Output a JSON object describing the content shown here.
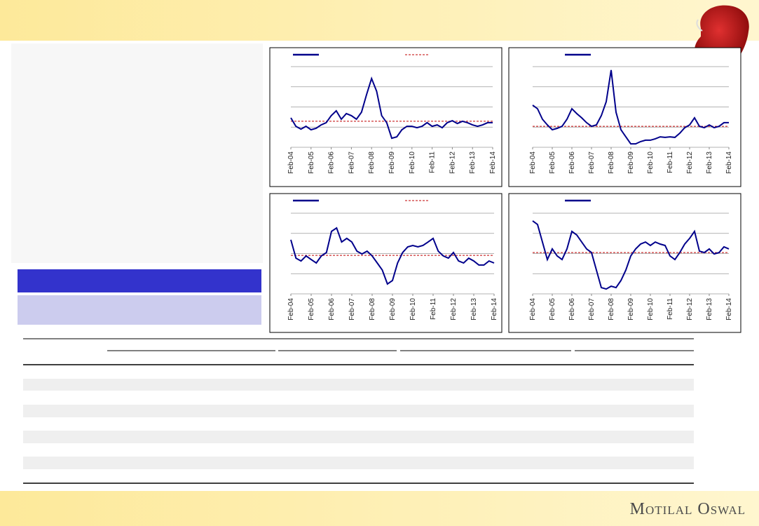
{
  "footer": {
    "logo": "Motilal Oswal"
  },
  "chart_data": [
    {
      "type": "line",
      "x": [
        0,
        3,
        6,
        9,
        12,
        15,
        18,
        21,
        24,
        27,
        30,
        33,
        36,
        39,
        42,
        45,
        48,
        51,
        54,
        57,
        60,
        63,
        66,
        69,
        72,
        75,
        78,
        81,
        84,
        87,
        90,
        93,
        96,
        99,
        102,
        105,
        108,
        111,
        114,
        117,
        120
      ],
      "xlim": [
        0,
        120
      ],
      "xticks": [
        {
          "value": 0,
          "label": "Feb-04"
        },
        {
          "value": 12,
          "label": "Feb-05"
        },
        {
          "value": 24,
          "label": "Feb-06"
        },
        {
          "value": 36,
          "label": "Feb-07"
        },
        {
          "value": 48,
          "label": "Feb-08"
        },
        {
          "value": 60,
          "label": "Feb-09"
        },
        {
          "value": 72,
          "label": "Feb-10"
        },
        {
          "value": 84,
          "label": "Feb-11"
        },
        {
          "value": 96,
          "label": "Feb-12"
        },
        {
          "value": 108,
          "label": "Feb-13"
        },
        {
          "value": 120,
          "label": "Feb-14"
        }
      ],
      "ylim": [
        0,
        4
      ],
      "yticks": [
        0,
        1,
        2,
        3,
        4
      ],
      "grid": true,
      "series": [
        {
          "color": "#00008b",
          "values": [
            1.46,
            1.04,
            0.9,
            1.04,
            0.87,
            0.94,
            1.11,
            1.22,
            1.57,
            1.81,
            1.39,
            1.67,
            1.57,
            1.39,
            1.74,
            2.61,
            3.41,
            2.78,
            1.57,
            1.22,
            0.45,
            0.52,
            0.87,
            1.04,
            1.04,
            0.97,
            1.04,
            1.22,
            1.04,
            1.11,
            0.97,
            1.22,
            1.32,
            1.18,
            1.29,
            1.22,
            1.11,
            1.04,
            1.11,
            1.22,
            1.22
          ]
        }
      ],
      "hline": {
        "value": 1.29,
        "color": "#c00000"
      },
      "legend_hline": true
    },
    {
      "type": "line",
      "x": [
        0,
        3,
        6,
        9,
        12,
        15,
        18,
        21,
        24,
        27,
        30,
        33,
        36,
        39,
        42,
        45,
        48,
        51,
        54,
        57,
        60,
        63,
        66,
        69,
        72,
        75,
        78,
        81,
        84,
        87,
        90,
        93,
        96,
        99,
        102,
        105,
        108,
        111,
        114,
        117,
        120
      ],
      "xlim": [
        0,
        120
      ],
      "xticks": [
        {
          "value": 0,
          "label": "Feb-04"
        },
        {
          "value": 12,
          "label": "Feb-05"
        },
        {
          "value": 24,
          "label": "Feb-06"
        },
        {
          "value": 36,
          "label": "Feb-07"
        },
        {
          "value": 48,
          "label": "Feb-08"
        },
        {
          "value": 60,
          "label": "Feb-09"
        },
        {
          "value": 72,
          "label": "Feb-10"
        },
        {
          "value": 84,
          "label": "Feb-11"
        },
        {
          "value": 96,
          "label": "Feb-12"
        },
        {
          "value": 108,
          "label": "Feb-13"
        },
        {
          "value": 120,
          "label": "Feb-14"
        }
      ],
      "ylim": [
        0,
        4
      ],
      "yticks": [
        0,
        1,
        2,
        3,
        4
      ],
      "grid": true,
      "series": [
        {
          "color": "#00008b",
          "values": [
            2.09,
            1.91,
            1.39,
            1.11,
            0.87,
            0.94,
            1.04,
            1.39,
            1.91,
            1.67,
            1.46,
            1.22,
            1.04,
            1.11,
            1.57,
            2.26,
            3.83,
            1.74,
            0.87,
            0.52,
            0.17,
            0.17,
            0.28,
            0.35,
            0.35,
            0.42,
            0.52,
            0.49,
            0.52,
            0.49,
            0.7,
            0.97,
            1.11,
            1.46,
            1.04,
            0.97,
            1.11,
            0.97,
            1.04,
            1.22,
            1.22
          ]
        }
      ],
      "hline": {
        "value": 1.04,
        "color": "#c00000"
      },
      "legend_hline": false
    },
    {
      "type": "line",
      "x": [
        0,
        3,
        6,
        9,
        12,
        15,
        18,
        21,
        24,
        27,
        30,
        33,
        36,
        39,
        42,
        45,
        48,
        51,
        54,
        57,
        60,
        63,
        66,
        69,
        72,
        75,
        78,
        81,
        84,
        87,
        90,
        93,
        96,
        99,
        102,
        105,
        108,
        111,
        114,
        117,
        120
      ],
      "xlim": [
        0,
        120
      ],
      "xticks": [
        {
          "value": 0,
          "label": "Feb-04"
        },
        {
          "value": 12,
          "label": "Feb-05"
        },
        {
          "value": 24,
          "label": "Feb-06"
        },
        {
          "value": 36,
          "label": "Feb-07"
        },
        {
          "value": 48,
          "label": "Feb-08"
        },
        {
          "value": 60,
          "label": "Feb-09"
        },
        {
          "value": 72,
          "label": "Feb-10"
        },
        {
          "value": 84,
          "label": "Feb-11"
        },
        {
          "value": 96,
          "label": "Feb-12"
        },
        {
          "value": 108,
          "label": "Feb-13"
        },
        {
          "value": 120,
          "label": "Feb-14"
        }
      ],
      "ylim": [
        0,
        4
      ],
      "yticks": [
        0,
        1,
        2,
        3,
        4
      ],
      "grid": true,
      "series": [
        {
          "color": "#00008b",
          "values": [
            2.68,
            1.77,
            1.63,
            1.88,
            1.7,
            1.53,
            1.88,
            2.05,
            3.1,
            3.27,
            2.57,
            2.75,
            2.57,
            2.12,
            1.98,
            2.12,
            1.88,
            1.53,
            1.18,
            0.49,
            0.66,
            1.53,
            2.05,
            2.33,
            2.4,
            2.33,
            2.4,
            2.57,
            2.75,
            2.12,
            1.88,
            1.77,
            2.05,
            1.63,
            1.53,
            1.77,
            1.63,
            1.43,
            1.43,
            1.63,
            1.53
          ]
        }
      ],
      "hline": {
        "value": 1.91,
        "color": "#c00000"
      },
      "legend_hline": true
    },
    {
      "type": "line",
      "x": [
        0,
        3,
        6,
        9,
        12,
        15,
        18,
        21,
        24,
        27,
        30,
        33,
        36,
        39,
        42,
        45,
        48,
        51,
        54,
        57,
        60,
        63,
        66,
        69,
        72,
        75,
        78,
        81,
        84,
        87,
        90,
        93,
        96,
        99,
        102,
        105,
        108,
        111,
        114,
        117,
        120
      ],
      "xlim": [
        0,
        120
      ],
      "xticks": [
        {
          "value": 0,
          "label": "Feb-04"
        },
        {
          "value": 12,
          "label": "Feb-05"
        },
        {
          "value": 24,
          "label": "Feb-06"
        },
        {
          "value": 36,
          "label": "Feb-07"
        },
        {
          "value": 48,
          "label": "Feb-08"
        },
        {
          "value": 60,
          "label": "Feb-09"
        },
        {
          "value": 72,
          "label": "Feb-10"
        },
        {
          "value": 84,
          "label": "Feb-11"
        },
        {
          "value": 96,
          "label": "Feb-12"
        },
        {
          "value": 108,
          "label": "Feb-13"
        },
        {
          "value": 120,
          "label": "Feb-14"
        }
      ],
      "ylim": [
        0,
        4
      ],
      "yticks": [
        0,
        1,
        2,
        3,
        4
      ],
      "grid": true,
      "series": [
        {
          "color": "#00008b",
          "values": [
            3.62,
            3.44,
            2.57,
            1.7,
            2.23,
            1.88,
            1.7,
            2.23,
            3.1,
            2.92,
            2.57,
            2.23,
            2.05,
            1.18,
            0.31,
            0.24,
            0.38,
            0.31,
            0.66,
            1.18,
            1.88,
            2.23,
            2.47,
            2.57,
            2.4,
            2.57,
            2.47,
            2.4,
            1.88,
            1.7,
            2.05,
            2.47,
            2.75,
            3.1,
            2.12,
            2.05,
            2.23,
            1.98,
            2.05,
            2.33,
            2.23
          ]
        }
      ],
      "hline": {
        "value": 2.05,
        "color": "#c00000"
      },
      "legend_hline": false
    }
  ]
}
